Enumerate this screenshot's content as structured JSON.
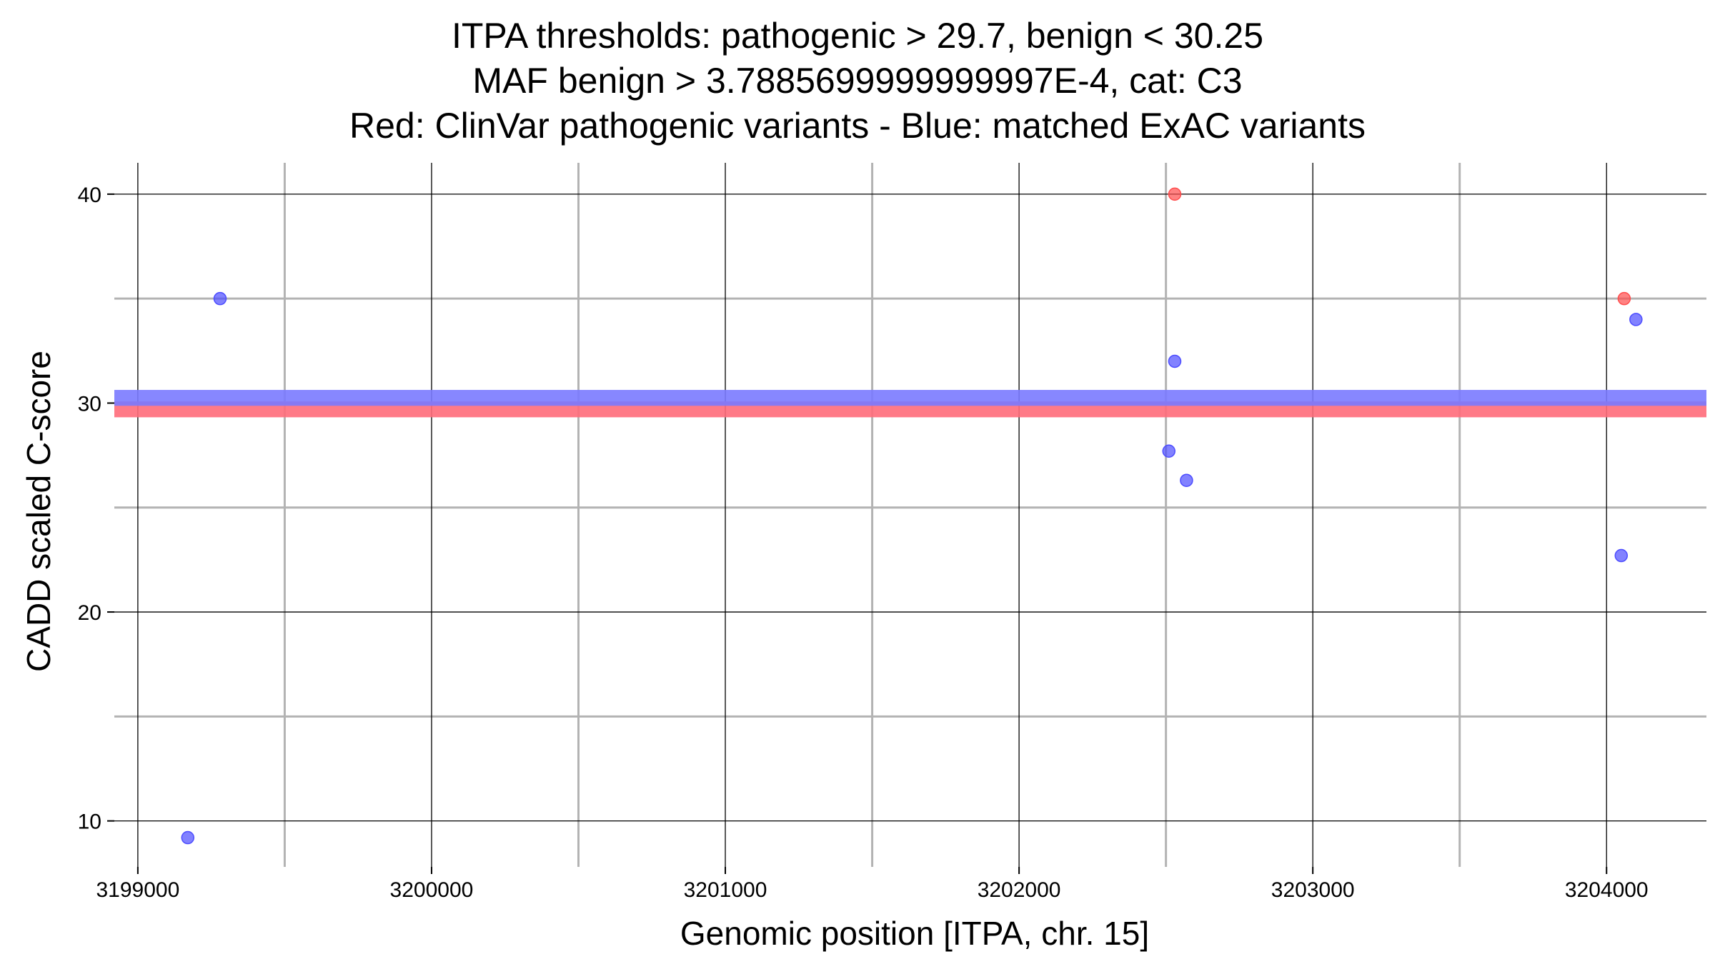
{
  "chart_data": {
    "type": "scatter",
    "title": [
      "ITPA thresholds: pathogenic > 29.7, benign < 30.25",
      "MAF benign > 3.7885699999999997E-4, cat: C3",
      "Red: ClinVar pathogenic variants - Blue: matched ExAC variants"
    ],
    "xlabel": "Genomic position [ITPA, chr. 15]",
    "ylabel": "CADD scaled C-score",
    "xlim": [
      3198920,
      3204340
    ],
    "ylim": [
      7.8,
      41.5
    ],
    "x_major_ticks": [
      3199000,
      3200000,
      3201000,
      3202000,
      3203000,
      3204000
    ],
    "x_tick_labels": [
      "3199000",
      "3200000",
      "3201000",
      "3202000",
      "3203000",
      "3204000"
    ],
    "x_minor_ticks": [
      3199500,
      3200500,
      3201500,
      3202500,
      3203500
    ],
    "y_major_ticks": [
      10,
      20,
      30,
      40
    ],
    "y_tick_labels": [
      "10",
      "20",
      "30",
      "40"
    ],
    "y_minor_ticks": [
      15,
      25,
      35
    ],
    "grid": true,
    "thresholds": [
      {
        "name": "pathogenic",
        "value": 29.7,
        "color": "#ff6b7a"
      },
      {
        "name": "benign",
        "value": 30.25,
        "color": "#7a7aff"
      }
    ],
    "series": [
      {
        "name": "ClinVar pathogenic variants",
        "color": "#ff4d4d",
        "points": [
          {
            "x": 3202530,
            "y": 40.0
          },
          {
            "x": 3204060,
            "y": 35.0
          }
        ]
      },
      {
        "name": "matched ExAC variants",
        "color": "#4d4dff",
        "points": [
          {
            "x": 3199280,
            "y": 35.0
          },
          {
            "x": 3199170,
            "y": 9.2
          },
          {
            "x": 3202530,
            "y": 32.0
          },
          {
            "x": 3202510,
            "y": 27.7
          },
          {
            "x": 3202570,
            "y": 26.3
          },
          {
            "x": 3204100,
            "y": 34.0
          },
          {
            "x": 3204050,
            "y": 22.7
          }
        ]
      }
    ]
  }
}
